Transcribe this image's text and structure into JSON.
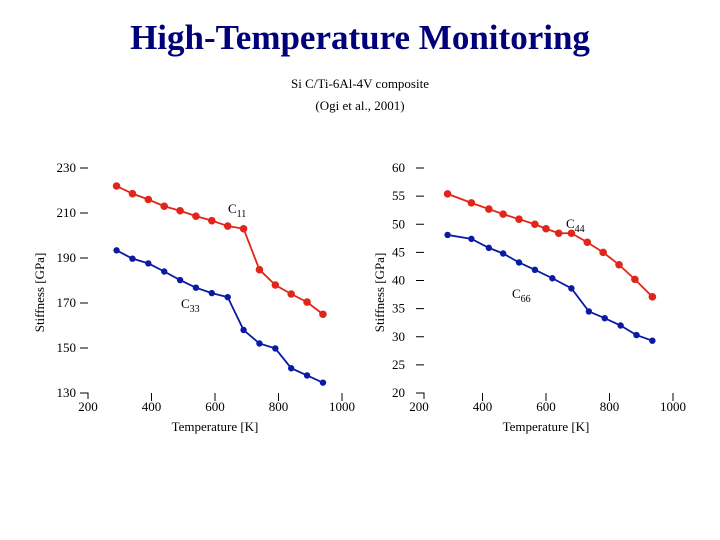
{
  "title": "High-Temperature Monitoring",
  "subtitle": "Si C/Ti-6Al-4V composite",
  "source": "(Ogi et al., 2001)",
  "colors": {
    "red": "#e0261a",
    "blue": "#0a1aa6",
    "title": "#00007a"
  },
  "chart_data": [
    {
      "type": "line",
      "xlabel": "Temperature [K]",
      "ylabel": "Stiffness [GPa]",
      "xlim": [
        200,
        1000
      ],
      "ylim": [
        130,
        230
      ],
      "xticks": [
        "200",
        "400",
        "600",
        "800",
        "1000"
      ],
      "yticks": [
        "130",
        "150",
        "170",
        "190",
        "210",
        "230"
      ],
      "grid": false,
      "series": [
        {
          "name": "C11",
          "label_main": "C",
          "label_sub": "11",
          "color": "red",
          "x": [
            290,
            340,
            390,
            440,
            490,
            540,
            590,
            640,
            690,
            740,
            790,
            840,
            890,
            940
          ],
          "y": [
            222.0,
            218.6,
            216.0,
            213.0,
            211.0,
            208.6,
            206.6,
            204.2,
            203.0,
            184.8,
            178.0,
            174.0,
            170.4,
            165.0
          ]
        },
        {
          "name": "C33",
          "label_main": "C",
          "label_sub": "33",
          "color": "blue",
          "x": [
            290,
            340,
            390,
            440,
            490,
            540,
            590,
            640,
            690,
            740,
            790,
            840,
            890,
            940
          ],
          "y": [
            193.4,
            189.7,
            187.6,
            184.0,
            180.2,
            176.8,
            174.4,
            172.6,
            158.0,
            152.0,
            149.8,
            141.0,
            137.8,
            134.6
          ]
        }
      ]
    },
    {
      "type": "line",
      "xlabel": "Temperature [K]",
      "ylabel": "Stiffness [GPa]",
      "xlim": [
        200,
        1000
      ],
      "ylim": [
        20,
        60
      ],
      "xticks": [
        "200",
        "400",
        "600",
        "800",
        "1000"
      ],
      "yticks": [
        "20",
        "25",
        "30",
        "35",
        "40",
        "45",
        "50",
        "55",
        "60"
      ],
      "grid": false,
      "series": [
        {
          "name": "C44",
          "label_main": "C",
          "label_sub": "44",
          "color": "red",
          "x": [
            290,
            365,
            420,
            465,
            515,
            565,
            600,
            640,
            680,
            730,
            780,
            830,
            880,
            935
          ],
          "y": [
            55.4,
            53.8,
            52.7,
            51.8,
            50.9,
            50.0,
            49.2,
            48.4,
            48.4,
            46.8,
            45.0,
            42.8,
            40.2,
            37.1
          ]
        },
        {
          "name": "C66",
          "label_main": "C",
          "label_sub": "66",
          "color": "blue",
          "x": [
            290,
            365,
            420,
            465,
            515,
            565,
            620,
            680,
            735,
            785,
            835,
            885,
            935
          ],
          "y": [
            48.1,
            47.4,
            45.8,
            44.8,
            43.2,
            41.9,
            40.4,
            38.6,
            34.5,
            33.3,
            32.0,
            30.3,
            29.3
          ]
        }
      ]
    }
  ]
}
